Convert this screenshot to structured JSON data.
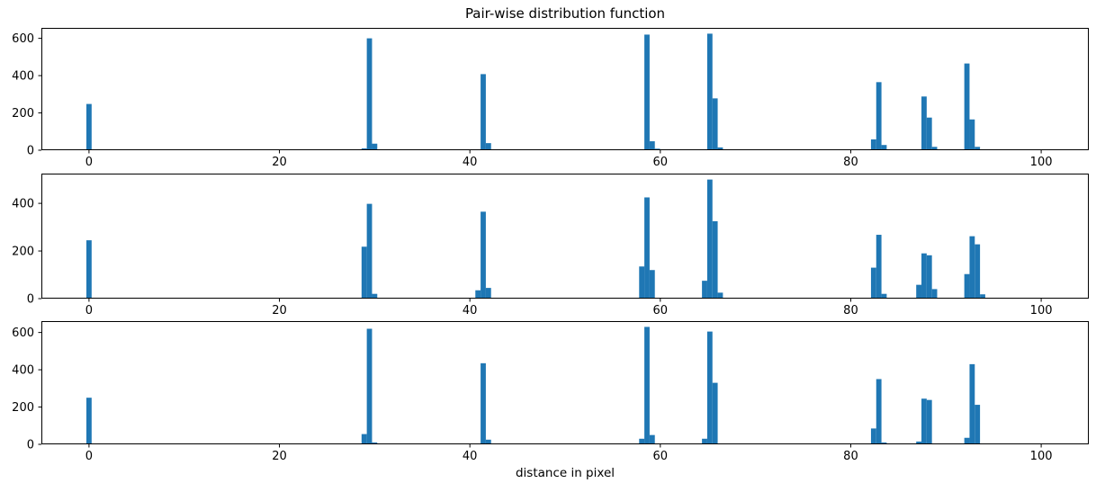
{
  "figure": {
    "title": "Pair-wise distribution function",
    "xlabel": "distance in pixel",
    "bar_color": "#1f77b4",
    "axis_color": "#000000",
    "background": "#ffffff"
  },
  "chart_data": [
    {
      "type": "bar",
      "name": "pairwise-distribution-top",
      "xlabel": "",
      "ylabel": "",
      "xlim": [
        -5,
        105
      ],
      "ylim": [
        0,
        656
      ],
      "xticks": [
        0,
        20,
        40,
        60,
        80,
        100
      ],
      "yticks": [
        0,
        200,
        400,
        600
      ],
      "grid": false,
      "bar_width": 0.55,
      "bars": [
        [
          0.0,
          248
        ],
        [
          28.9,
          10
        ],
        [
          29.45,
          600
        ],
        [
          30.0,
          35
        ],
        [
          41.4,
          408
        ],
        [
          41.95,
          38
        ],
        [
          58.6,
          620
        ],
        [
          59.15,
          48
        ],
        [
          59.7,
          8
        ],
        [
          65.2,
          625
        ],
        [
          65.75,
          278
        ],
        [
          66.3,
          15
        ],
        [
          82.4,
          58
        ],
        [
          82.95,
          365
        ],
        [
          83.5,
          28
        ],
        [
          87.7,
          288
        ],
        [
          88.25,
          175
        ],
        [
          88.8,
          18
        ],
        [
          92.2,
          465
        ],
        [
          92.75,
          165
        ],
        [
          93.3,
          18
        ]
      ]
    },
    {
      "type": "bar",
      "name": "pairwise-distribution-middle",
      "xlabel": "",
      "ylabel": "",
      "xlim": [
        -5,
        105
      ],
      "ylim": [
        0,
        525
      ],
      "xticks": [
        0,
        20,
        40,
        60,
        80,
        100
      ],
      "yticks": [
        0,
        200,
        400
      ],
      "grid": false,
      "bar_width": 0.55,
      "bars": [
        [
          0.0,
          245
        ],
        [
          28.9,
          218
        ],
        [
          29.45,
          398
        ],
        [
          30.0,
          20
        ],
        [
          40.85,
          35
        ],
        [
          41.4,
          365
        ],
        [
          41.95,
          45
        ],
        [
          58.05,
          135
        ],
        [
          58.6,
          425
        ],
        [
          59.15,
          120
        ],
        [
          64.65,
          75
        ],
        [
          65.2,
          500
        ],
        [
          65.75,
          325
        ],
        [
          66.3,
          25
        ],
        [
          82.4,
          130
        ],
        [
          82.95,
          268
        ],
        [
          83.5,
          20
        ],
        [
          87.15,
          58
        ],
        [
          87.7,
          190
        ],
        [
          88.25,
          182
        ],
        [
          88.8,
          40
        ],
        [
          92.2,
          103
        ],
        [
          92.75,
          262
        ],
        [
          93.3,
          228
        ],
        [
          93.85,
          18
        ]
      ]
    },
    {
      "type": "bar",
      "name": "pairwise-distribution-bottom",
      "xlabel": "distance in pixel",
      "ylabel": "",
      "xlim": [
        -5,
        105
      ],
      "ylim": [
        0,
        661
      ],
      "xticks": [
        0,
        20,
        40,
        60,
        80,
        100
      ],
      "yticks": [
        0,
        200,
        400,
        600
      ],
      "grid": false,
      "bar_width": 0.55,
      "bars": [
        [
          0.0,
          250
        ],
        [
          28.9,
          55
        ],
        [
          29.45,
          620
        ],
        [
          30.0,
          10
        ],
        [
          41.4,
          435
        ],
        [
          41.95,
          25
        ],
        [
          58.05,
          30
        ],
        [
          58.6,
          630
        ],
        [
          59.15,
          50
        ],
        [
          64.65,
          30
        ],
        [
          65.2,
          605
        ],
        [
          65.75,
          330
        ],
        [
          82.4,
          85
        ],
        [
          82.95,
          350
        ],
        [
          83.5,
          10
        ],
        [
          87.15,
          15
        ],
        [
          87.7,
          245
        ],
        [
          88.25,
          238
        ],
        [
          92.2,
          35
        ],
        [
          92.75,
          430
        ],
        [
          93.3,
          212
        ]
      ]
    }
  ]
}
